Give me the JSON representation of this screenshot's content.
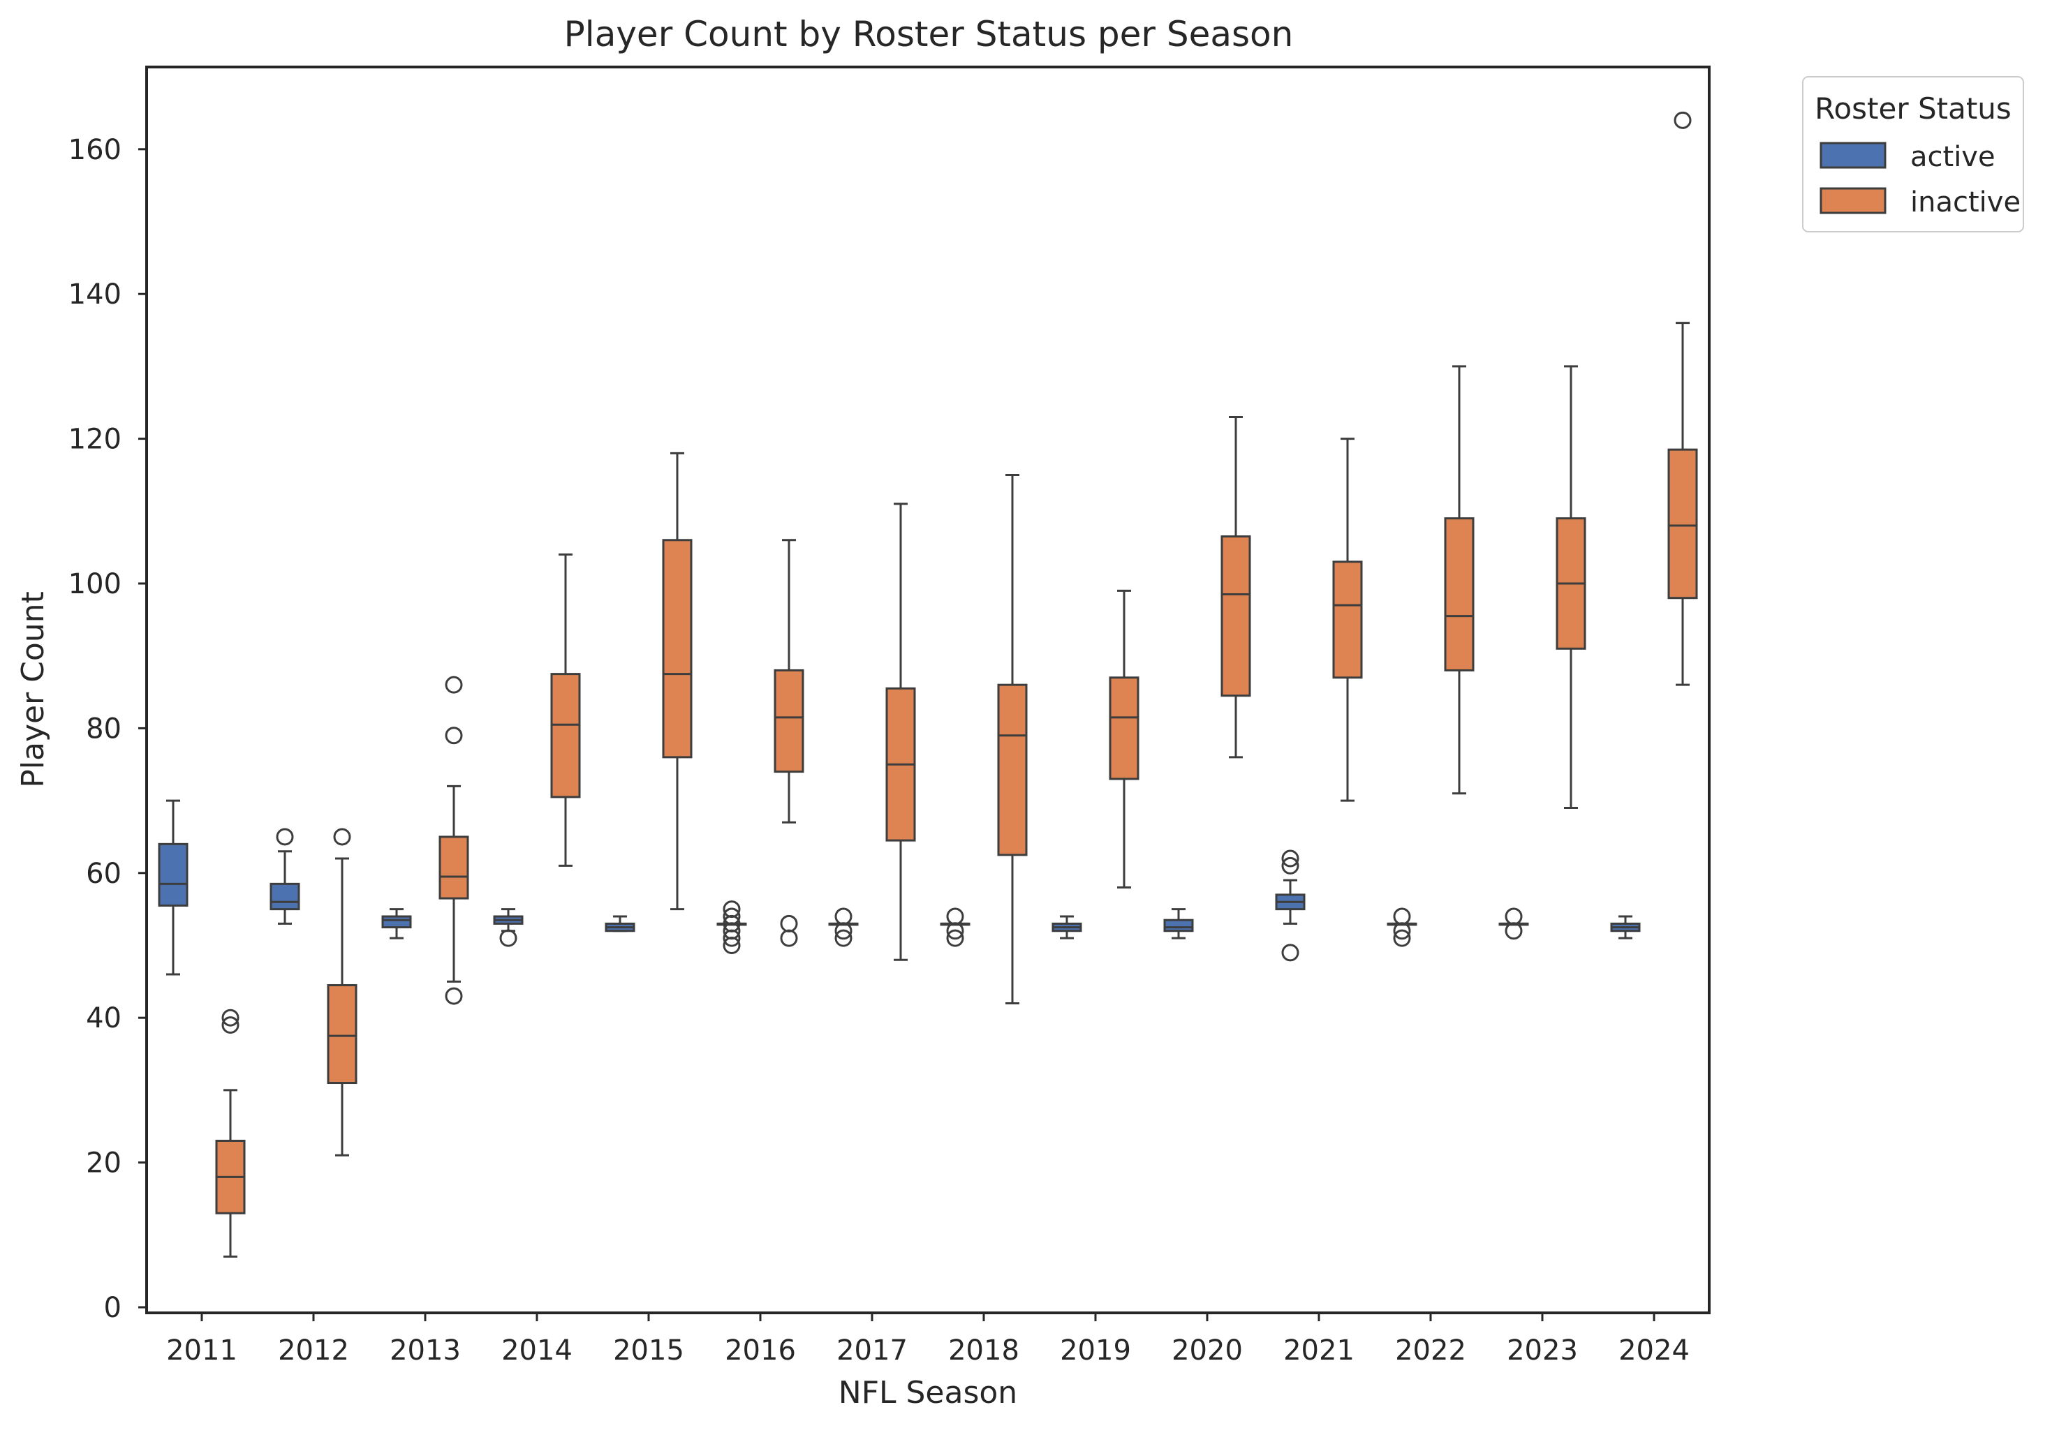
{
  "chart_data": {
    "type": "box",
    "title": "Player Count by Roster Status per Season",
    "xlabel": "NFL Season",
    "ylabel": "Player Count",
    "ylim": [
      0,
      172
    ],
    "yticks": [
      0,
      20,
      40,
      60,
      80,
      100,
      120,
      140,
      160
    ],
    "grid": false,
    "legend": {
      "title": "Roster Status",
      "placement": "top-right-outside"
    },
    "categories": [
      "2011",
      "2012",
      "2013",
      "2014",
      "2015",
      "2016",
      "2017",
      "2018",
      "2019",
      "2020",
      "2021",
      "2022",
      "2023",
      "2024"
    ],
    "series": [
      {
        "name": "active",
        "color": "#4c72b0",
        "boxes": [
          {
            "whislo": 46,
            "q1": 55.5,
            "med": 58.5,
            "q3": 64,
            "whishi": 70,
            "fliers": []
          },
          {
            "whislo": 53,
            "q1": 55,
            "med": 56,
            "q3": 58.5,
            "whishi": 63,
            "fliers": [
              65
            ]
          },
          {
            "whislo": 51,
            "q1": 52.5,
            "med": 53.5,
            "q3": 54,
            "whishi": 55,
            "fliers": []
          },
          {
            "whislo": 52,
            "q1": 53,
            "med": 53.5,
            "q3": 54,
            "whishi": 55,
            "fliers": [
              51
            ]
          },
          {
            "whislo": 52,
            "q1": 52,
            "med": 52.5,
            "q3": 53,
            "whishi": 54,
            "fliers": []
          },
          {
            "whislo": 53,
            "q1": 53,
            "med": 53,
            "q3": 53,
            "whishi": 53,
            "fliers": [
              55,
              54,
              53,
              52,
              51,
              50
            ]
          },
          {
            "whislo": 53,
            "q1": 53,
            "med": 53,
            "q3": 53,
            "whishi": 53,
            "fliers": [
              54,
              52,
              51
            ]
          },
          {
            "whislo": 53,
            "q1": 53,
            "med": 53,
            "q3": 53,
            "whishi": 53,
            "fliers": [
              54,
              52,
              51
            ]
          },
          {
            "whislo": 51,
            "q1": 52,
            "med": 52.5,
            "q3": 53,
            "whishi": 54,
            "fliers": []
          },
          {
            "whislo": 51,
            "q1": 52,
            "med": 52.5,
            "q3": 53.5,
            "whishi": 55,
            "fliers": []
          },
          {
            "whislo": 53,
            "q1": 55,
            "med": 56,
            "q3": 57,
            "whishi": 59,
            "fliers": [
              62,
              61,
              49
            ]
          },
          {
            "whislo": 53,
            "q1": 53,
            "med": 53,
            "q3": 53,
            "whishi": 53,
            "fliers": [
              54,
              52,
              51
            ]
          },
          {
            "whislo": 53,
            "q1": 53,
            "med": 53,
            "q3": 53,
            "whishi": 53,
            "fliers": [
              54,
              52
            ]
          },
          {
            "whislo": 51,
            "q1": 52,
            "med": 52.5,
            "q3": 53,
            "whishi": 54,
            "fliers": []
          }
        ]
      },
      {
        "name": "inactive",
        "color": "#dd8452",
        "boxes": [
          {
            "whislo": 7,
            "q1": 13,
            "med": 18,
            "q3": 23,
            "whishi": 30,
            "fliers": [
              40,
              39
            ]
          },
          {
            "whislo": 21,
            "q1": 31,
            "med": 37.5,
            "q3": 44.5,
            "whishi": 62,
            "fliers": [
              65
            ]
          },
          {
            "whislo": 45,
            "q1": 56.5,
            "med": 59.5,
            "q3": 65,
            "whishi": 72,
            "fliers": [
              86,
              79,
              43
            ]
          },
          {
            "whislo": 61,
            "q1": 70.5,
            "med": 80.5,
            "q3": 87.5,
            "whishi": 104,
            "fliers": []
          },
          {
            "whislo": 55,
            "q1": 76,
            "med": 87.5,
            "q3": 106,
            "whishi": 118,
            "fliers": []
          },
          {
            "whislo": 67,
            "q1": 74,
            "med": 81.5,
            "q3": 88,
            "whishi": 106,
            "fliers": [
              53,
              51
            ]
          },
          {
            "whislo": 48,
            "q1": 64.5,
            "med": 75,
            "q3": 85.5,
            "whishi": 111,
            "fliers": []
          },
          {
            "whislo": 42,
            "q1": 62.5,
            "med": 79,
            "q3": 86,
            "whishi": 115,
            "fliers": []
          },
          {
            "whislo": 58,
            "q1": 73,
            "med": 81.5,
            "q3": 87,
            "whishi": 99,
            "fliers": []
          },
          {
            "whislo": 76,
            "q1": 84.5,
            "med": 98.5,
            "q3": 106.5,
            "whishi": 123,
            "fliers": []
          },
          {
            "whislo": 70,
            "q1": 87,
            "med": 97,
            "q3": 103,
            "whishi": 120,
            "fliers": []
          },
          {
            "whislo": 71,
            "q1": 88,
            "med": 95.5,
            "q3": 109,
            "whishi": 130,
            "fliers": []
          },
          {
            "whislo": 69,
            "q1": 91,
            "med": 100,
            "q3": 109,
            "whishi": 130,
            "fliers": []
          },
          {
            "whislo": 86,
            "q1": 98,
            "med": 108,
            "q3": 118.5,
            "whishi": 136,
            "fliers": [
              164
            ]
          }
        ]
      }
    ]
  }
}
